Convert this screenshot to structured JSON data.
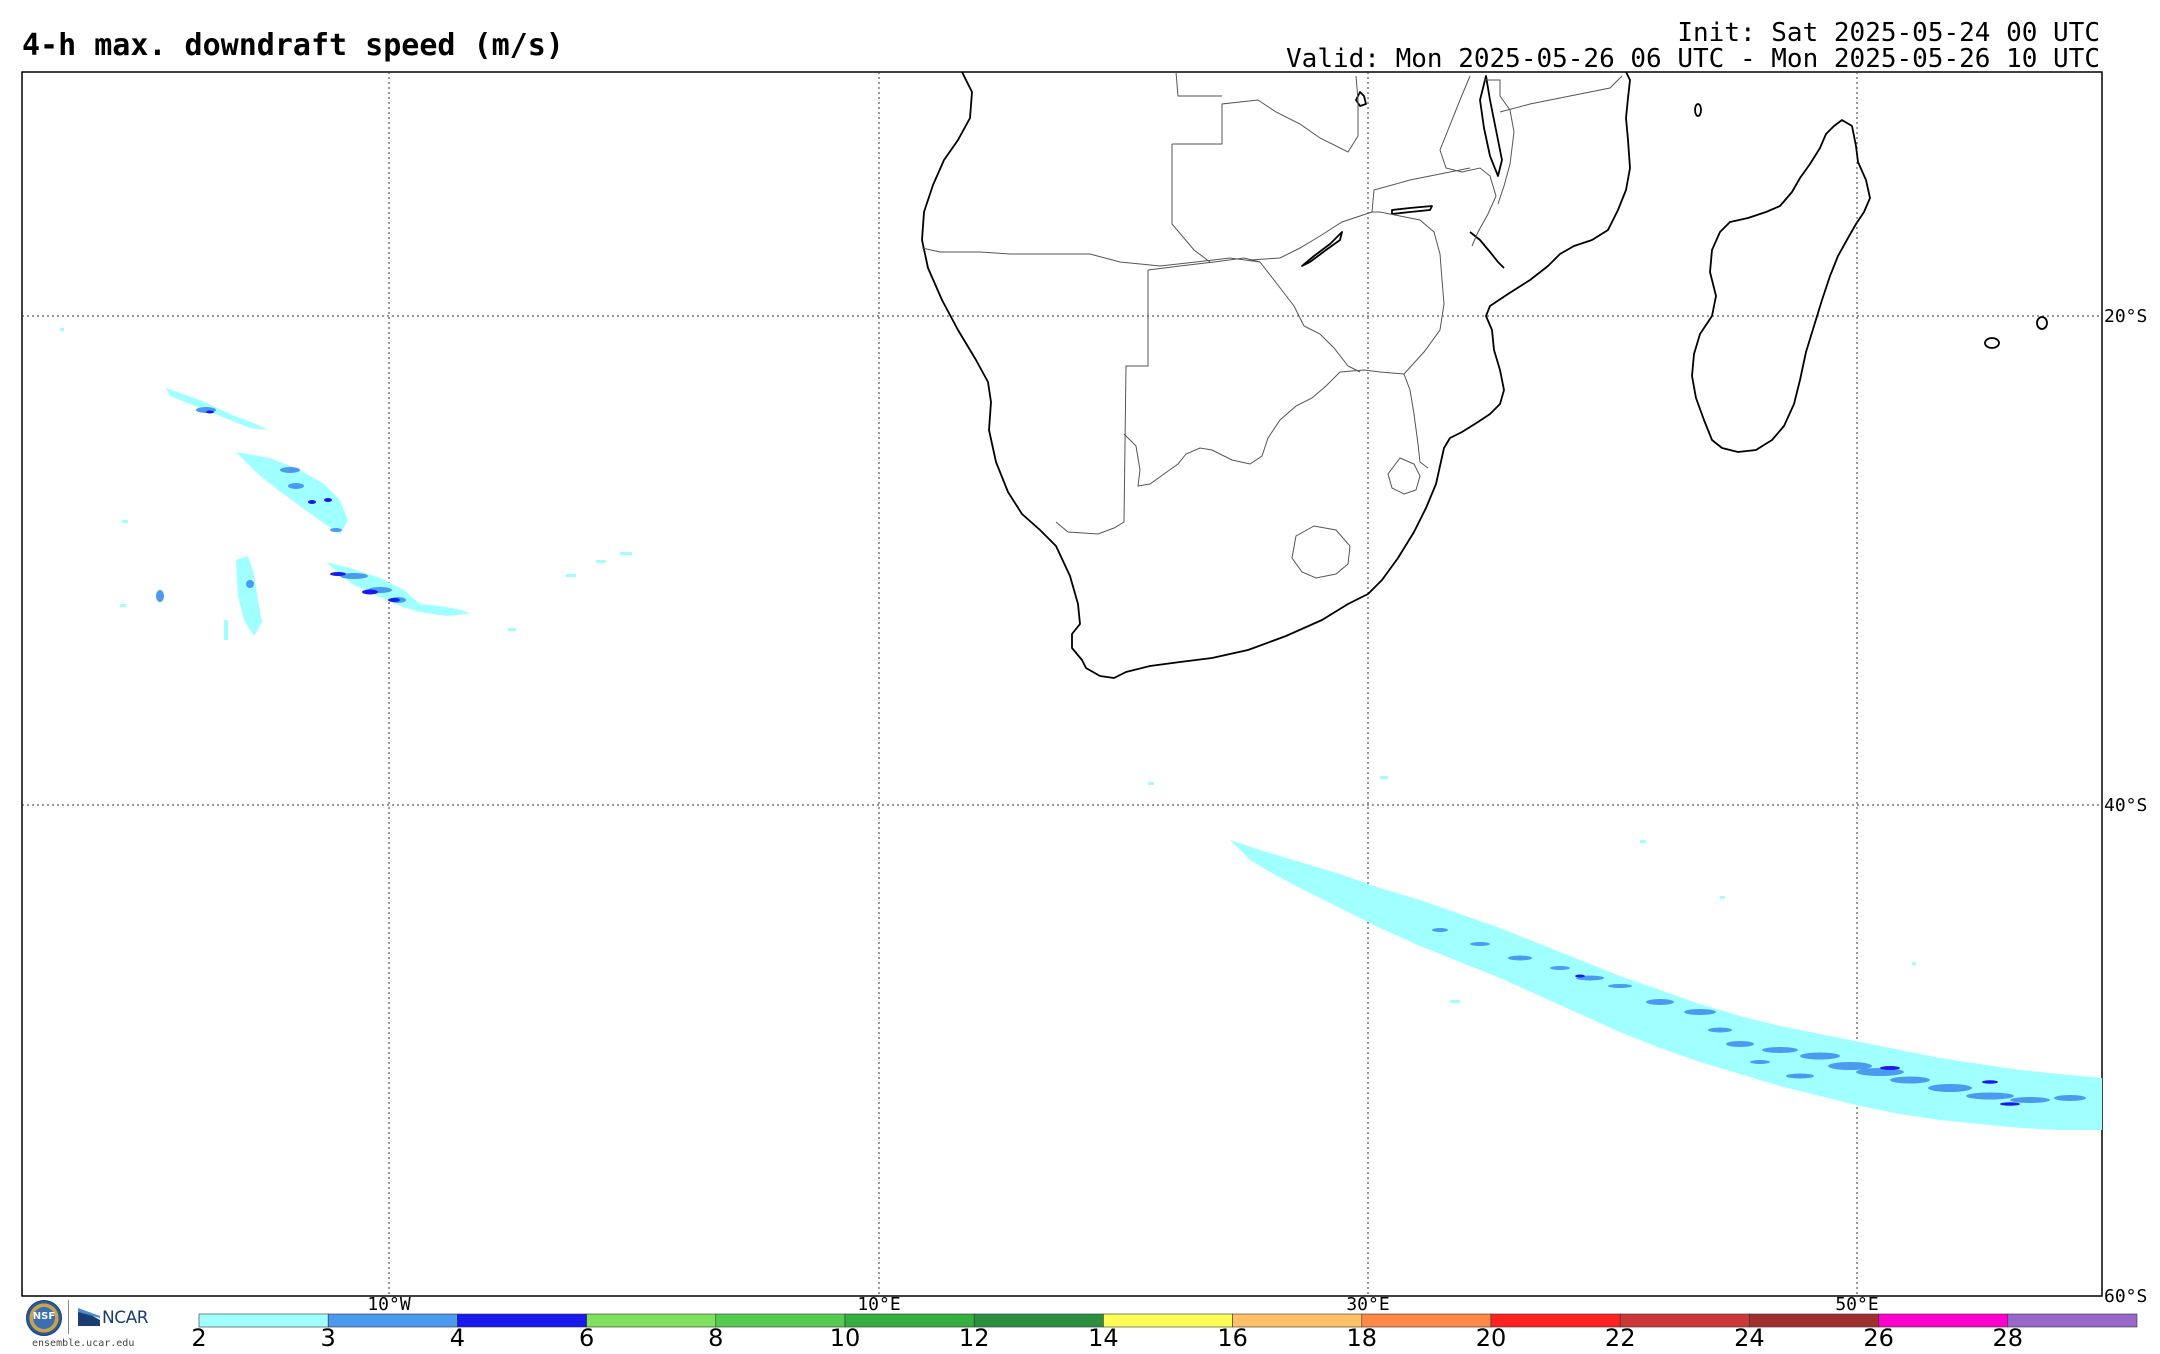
{
  "header": {
    "title": "4-h max. downdraft speed (m/s)",
    "init": "Init: Sat 2025-05-24 00 UTC",
    "valid": "Valid: Mon 2025-05-26 06 UTC - Mon 2025-05-26 10 UTC"
  },
  "map": {
    "lon_labels": [
      "10°W",
      "10°E",
      "30°E",
      "50°E"
    ],
    "lat_labels": [
      "20°S",
      "40°S",
      "60°S"
    ]
  },
  "colorbar": {
    "ticks": [
      "2",
      "3",
      "4",
      "6",
      "8",
      "10",
      "12",
      "14",
      "16",
      "18",
      "20",
      "22",
      "24",
      "26",
      "28"
    ],
    "colors": [
      "#a0ffff",
      "#4a9af0",
      "#1a1aee",
      "#80e060",
      "#55cc50",
      "#35b040",
      "#2a9040",
      "#ffff55",
      "#ffc066",
      "#ff8844",
      "#ff2222",
      "#cc3838",
      "#a03030",
      "#ff00cc",
      "#9966cc"
    ]
  },
  "footer": {
    "nsf": "NSF",
    "ncar": "NCAR",
    "site": "ensemble.ucar.edu"
  }
}
